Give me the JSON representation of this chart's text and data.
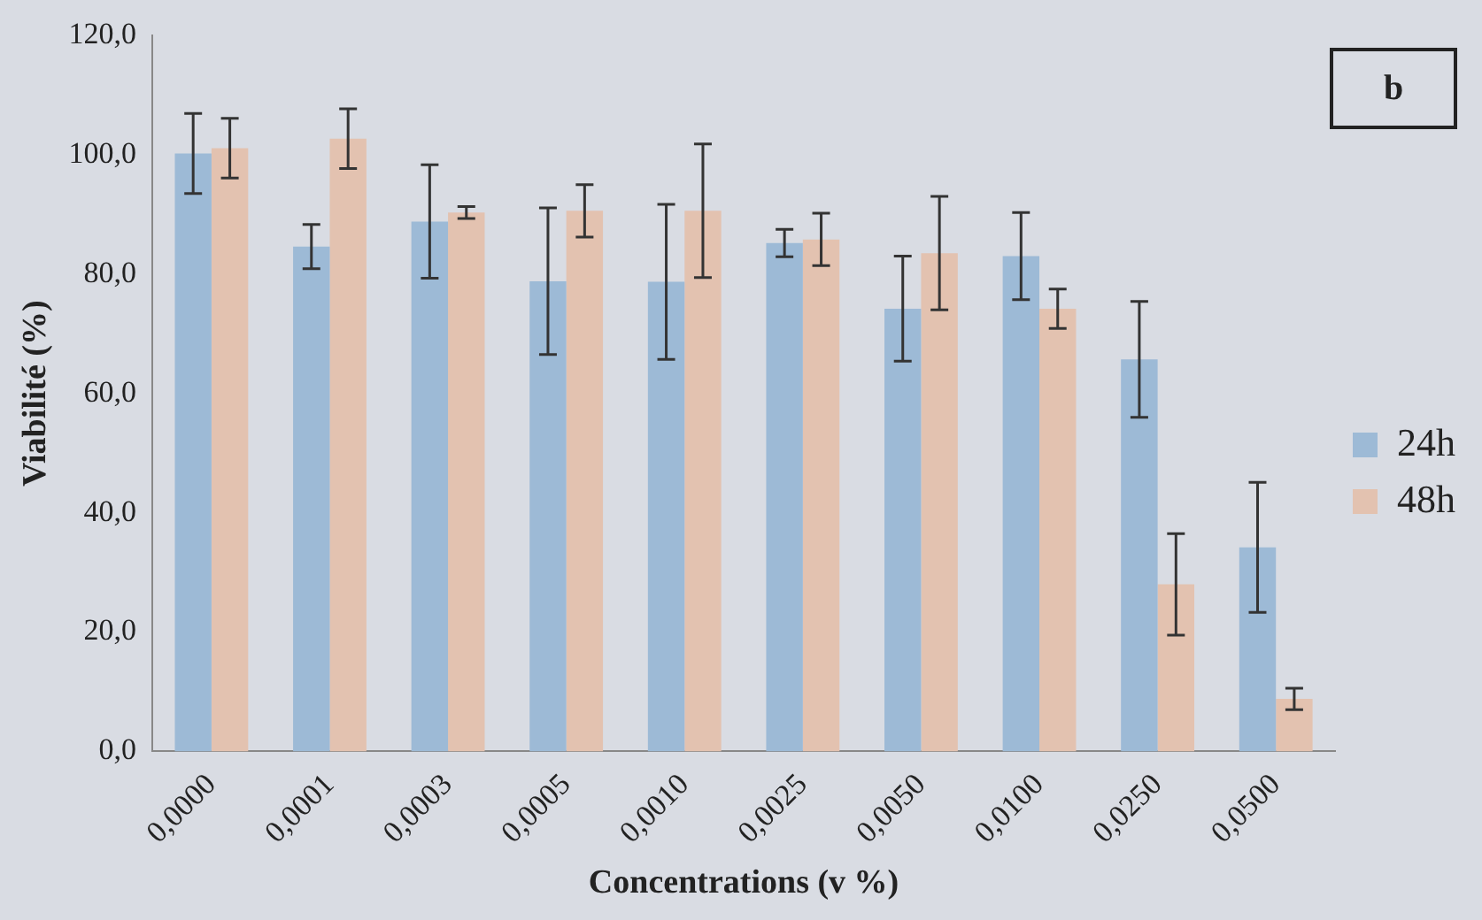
{
  "chart_data": {
    "type": "bar",
    "xlabel": "Concentrations (v %)",
    "ylabel": "Viabilité (%)",
    "annotations": [
      "b"
    ],
    "categories": [
      "0,0000",
      "0,0001",
      "0,0003",
      "0,0005",
      "0,0010",
      "0,0025",
      "0,0050",
      "0,0100",
      "0,0250",
      "0,0500"
    ],
    "series": [
      {
        "name": "24h",
        "color": "#9dbad6",
        "values": [
          100.2,
          84.6,
          88.8,
          78.8,
          78.7,
          85.2,
          74.2,
          83.0,
          65.7,
          34.2
        ],
        "errors": [
          6.7,
          3.7,
          9.5,
          12.3,
          13.0,
          2.3,
          8.8,
          7.3,
          9.7,
          10.9
        ]
      },
      {
        "name": "48h",
        "color": "#e3c2b0",
        "values": [
          101.1,
          102.7,
          90.3,
          90.6,
          90.6,
          85.8,
          83.5,
          74.2,
          28.0,
          8.8
        ],
        "errors": [
          5.0,
          5.0,
          1.0,
          4.4,
          11.2,
          4.4,
          9.5,
          3.3,
          8.5,
          1.8
        ]
      }
    ],
    "ylim": [
      0,
      120
    ],
    "yticks": [
      {
        "value": 0,
        "label": "0,0"
      },
      {
        "value": 20,
        "label": "20,0"
      },
      {
        "value": 40,
        "label": "40,0"
      },
      {
        "value": 60,
        "label": "60,0"
      },
      {
        "value": 80,
        "label": "80,0"
      },
      {
        "value": 100,
        "label": "100,0"
      },
      {
        "value": 120,
        "label": "120,0"
      }
    ],
    "grid": false,
    "legend": "right"
  }
}
